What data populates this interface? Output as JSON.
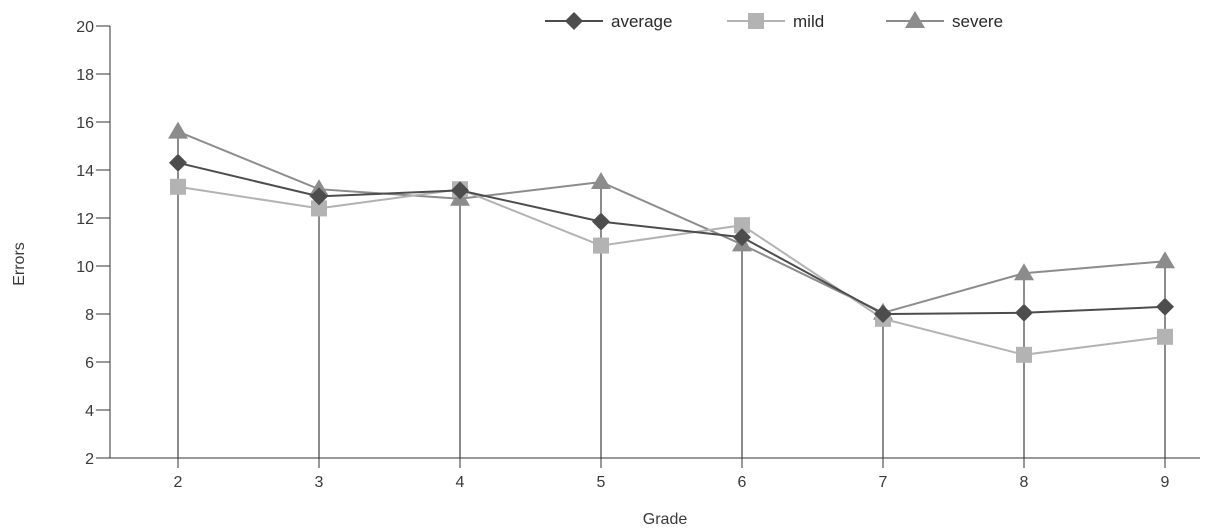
{
  "chart_data": {
    "type": "line",
    "title": "",
    "xlabel": "Grade",
    "ylabel": "Errors",
    "x": [
      2,
      3,
      4,
      5,
      6,
      7,
      8,
      9
    ],
    "ylim": [
      2,
      20
    ],
    "yticks": [
      2,
      4,
      6,
      8,
      10,
      12,
      14,
      16,
      18,
      20
    ],
    "grid": false,
    "drop_lines": true,
    "legend_position": "top-center",
    "series": [
      {
        "name": "average",
        "marker": "diamond",
        "color": "#4d4d4d",
        "values": [
          14.3,
          12.9,
          13.15,
          11.85,
          11.2,
          8.0,
          8.05,
          8.3
        ]
      },
      {
        "name": "mild",
        "marker": "square",
        "color": "#b3b3b3",
        "values": [
          13.3,
          12.4,
          13.2,
          10.85,
          11.7,
          7.8,
          6.3,
          7.05
        ]
      },
      {
        "name": "severe",
        "marker": "triangle",
        "color": "#8c8c8c",
        "values": [
          15.6,
          13.2,
          12.8,
          13.5,
          10.9,
          8.05,
          9.7,
          10.2
        ]
      }
    ]
  }
}
